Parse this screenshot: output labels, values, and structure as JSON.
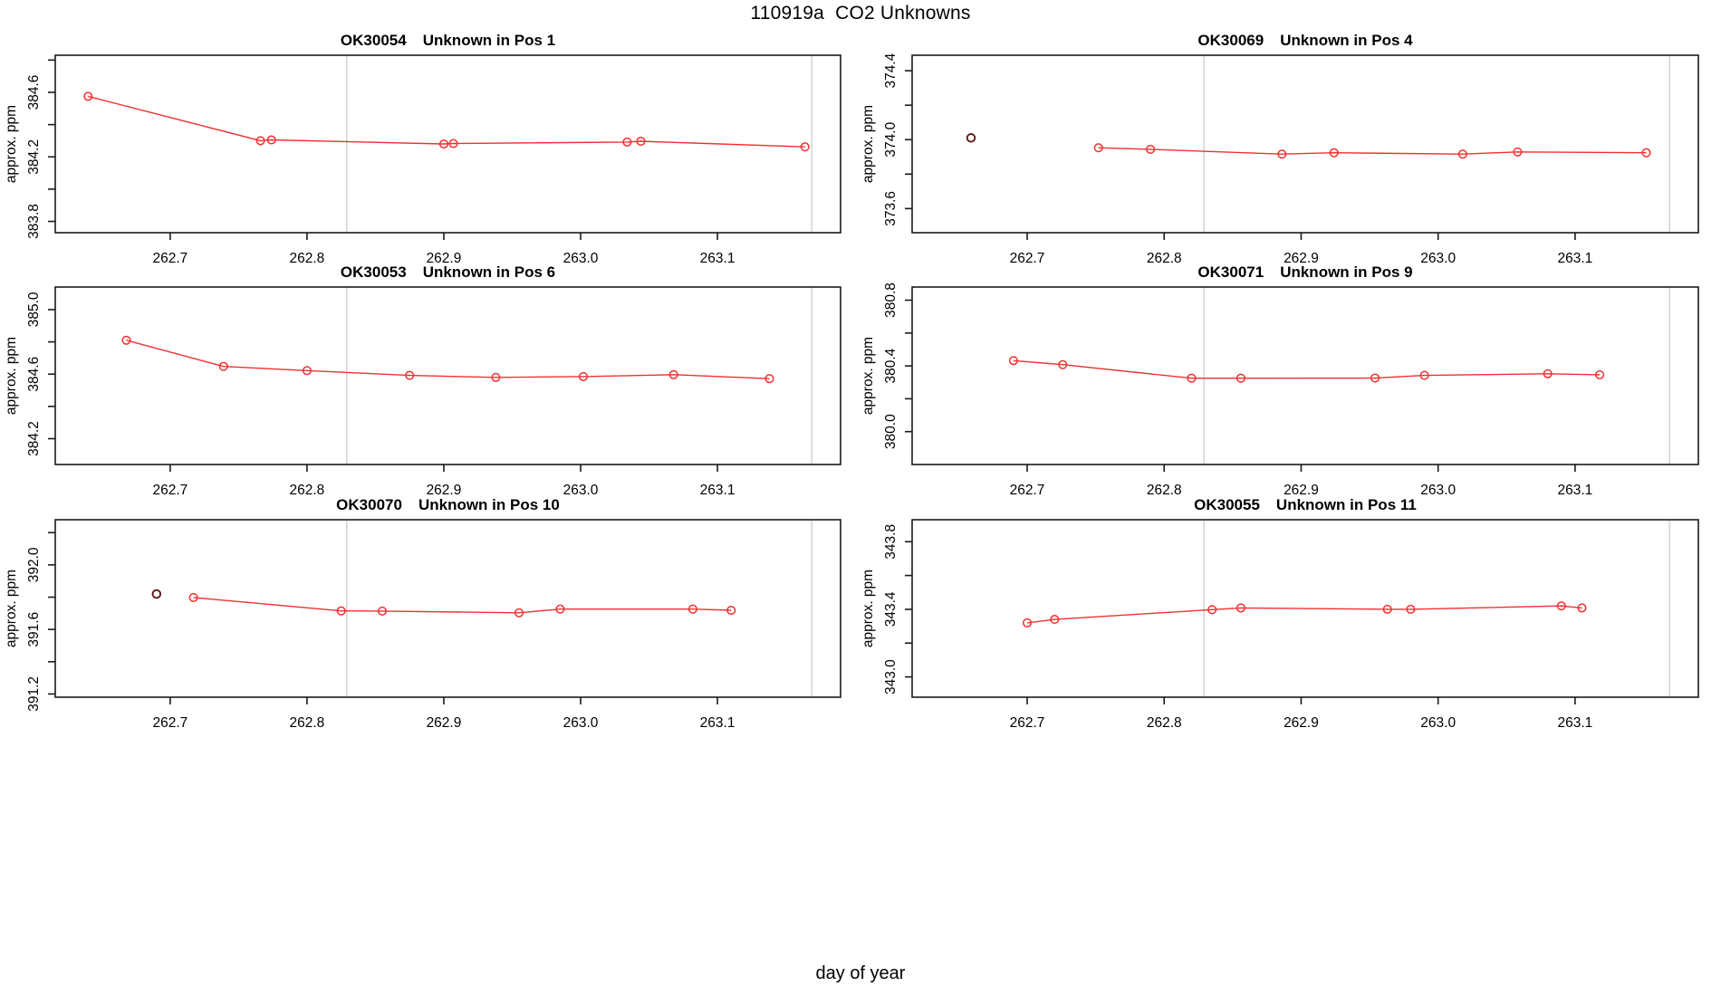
{
  "figure": {
    "title": "110919a  CO2 Unknowns",
    "xlabel": "day of year"
  },
  "colors": {
    "series": "#f03030",
    "isolated_point": "#5e1a1a",
    "gridline": "#d5d5d5",
    "axis": "#1a1a1a",
    "background": "#ffffff"
  },
  "chart_data": {
    "type": "line",
    "title": "110919a  CO2 Unknowns",
    "xlabel": "day of year",
    "x_range": [
      262.616,
      263.19
    ],
    "x_ticks": [
      {
        "v": 262.7,
        "t": "262.7"
      },
      {
        "v": 262.8,
        "t": "262.8"
      },
      {
        "v": 262.9,
        "t": "262.9"
      },
      {
        "v": 263.0,
        "t": "263.0"
      },
      {
        "v": 263.1,
        "t": "263.1"
      }
    ],
    "gridlines_x": [
      262.829,
      263.169
    ],
    "legend": "none",
    "grid": "vertical reference lines only",
    "charts": [
      {
        "code": "OK30054",
        "pos": "Unknown in Pos 1",
        "ylabel": "approx. ppm",
        "ylim": [
          383.73,
          384.83
        ],
        "yticks": [
          {
            "v": 383.8,
            "t": "383.8"
          },
          {
            "v": 384.0,
            "t": ""
          },
          {
            "v": 384.2,
            "t": "384.2"
          },
          {
            "v": 384.4,
            "t": ""
          },
          {
            "v": 384.6,
            "t": "384.6"
          },
          {
            "v": 384.8,
            "t": ""
          }
        ],
        "line": [
          [
            262.64,
            384.575
          ],
          [
            262.766,
            384.3
          ],
          [
            262.774,
            384.305
          ],
          [
            262.9,
            384.28
          ],
          [
            262.907,
            384.283
          ],
          [
            263.034,
            384.292
          ],
          [
            263.044,
            384.297
          ],
          [
            263.164,
            384.262
          ]
        ],
        "isolated": []
      },
      {
        "code": "OK30069",
        "pos": "Unknown in Pos 4",
        "ylabel": "approx. ppm",
        "ylim": [
          373.46,
          374.49
        ],
        "yticks": [
          {
            "v": 373.6,
            "t": "373.6"
          },
          {
            "v": 373.8,
            "t": ""
          },
          {
            "v": 374.0,
            "t": "374.0"
          },
          {
            "v": 374.2,
            "t": ""
          },
          {
            "v": 374.4,
            "t": "374.4"
          }
        ],
        "line": [
          [
            262.752,
            373.953
          ],
          [
            262.79,
            373.944
          ],
          [
            262.886,
            373.916
          ],
          [
            262.924,
            373.924
          ],
          [
            263.018,
            373.916
          ],
          [
            263.058,
            373.929
          ],
          [
            263.152,
            373.924
          ]
        ],
        "isolated": [
          [
            262.659,
            374.01
          ]
        ]
      },
      {
        "code": "OK30053",
        "pos": "Unknown in Pos 6",
        "ylabel": "approx. ppm",
        "ylim": [
          384.04,
          385.14
        ],
        "yticks": [
          {
            "v": 384.2,
            "t": "384.2"
          },
          {
            "v": 384.4,
            "t": ""
          },
          {
            "v": 384.6,
            "t": "384.6"
          },
          {
            "v": 384.8,
            "t": ""
          },
          {
            "v": 385.0,
            "t": "385.0"
          }
        ],
        "line": [
          [
            262.668,
            384.81
          ],
          [
            262.739,
            384.648
          ],
          [
            262.8,
            384.622
          ],
          [
            262.875,
            384.592
          ],
          [
            262.938,
            384.58
          ],
          [
            263.002,
            384.585
          ],
          [
            263.068,
            384.597
          ],
          [
            263.138,
            384.572
          ]
        ],
        "isolated": []
      },
      {
        "code": "OK30071",
        "pos": "Unknown in Pos 9",
        "ylabel": "approx. ppm",
        "ylim": [
          379.8,
          380.88
        ],
        "yticks": [
          {
            "v": 380.0,
            "t": "380.0"
          },
          {
            "v": 380.2,
            "t": ""
          },
          {
            "v": 380.4,
            "t": "380.4"
          },
          {
            "v": 380.6,
            "t": ""
          },
          {
            "v": 380.8,
            "t": "380.8"
          }
        ],
        "line": [
          [
            262.69,
            380.432
          ],
          [
            262.726,
            380.408
          ],
          [
            262.82,
            380.325
          ],
          [
            262.856,
            380.325
          ],
          [
            262.954,
            380.326
          ],
          [
            262.99,
            380.342
          ],
          [
            263.08,
            380.352
          ],
          [
            263.118,
            380.346
          ]
        ],
        "isolated": []
      },
      {
        "code": "OK30070",
        "pos": "Unknown in Pos 10",
        "ylabel": "approx. ppm",
        "ylim": [
          391.18,
          392.28
        ],
        "yticks": [
          {
            "v": 391.2,
            "t": "391.2"
          },
          {
            "v": 391.4,
            "t": ""
          },
          {
            "v": 391.6,
            "t": "391.6"
          },
          {
            "v": 391.8,
            "t": ""
          },
          {
            "v": 392.0,
            "t": "392.0"
          },
          {
            "v": 392.2,
            "t": ""
          }
        ],
        "line": [
          [
            262.717,
            391.798
          ],
          [
            262.825,
            391.715
          ],
          [
            262.855,
            391.714
          ],
          [
            262.955,
            391.703
          ],
          [
            262.985,
            391.726
          ],
          [
            263.082,
            391.726
          ],
          [
            263.11,
            391.719
          ]
        ],
        "isolated": [
          [
            262.69,
            391.82
          ]
        ]
      },
      {
        "code": "OK30055",
        "pos": "Unknown in Pos 11",
        "ylabel": "approx. ppm",
        "ylim": [
          342.88,
          343.93
        ],
        "yticks": [
          {
            "v": 343.0,
            "t": "343.0"
          },
          {
            "v": 343.2,
            "t": ""
          },
          {
            "v": 343.4,
            "t": "343.4"
          },
          {
            "v": 343.6,
            "t": ""
          },
          {
            "v": 343.8,
            "t": "343.8"
          }
        ],
        "line": [
          [
            262.7,
            343.32
          ],
          [
            262.72,
            343.34
          ],
          [
            262.835,
            343.398
          ],
          [
            262.856,
            343.408
          ],
          [
            262.963,
            343.4
          ],
          [
            262.98,
            343.4
          ],
          [
            263.09,
            343.42
          ],
          [
            263.105,
            343.408
          ]
        ],
        "isolated": []
      }
    ]
  }
}
